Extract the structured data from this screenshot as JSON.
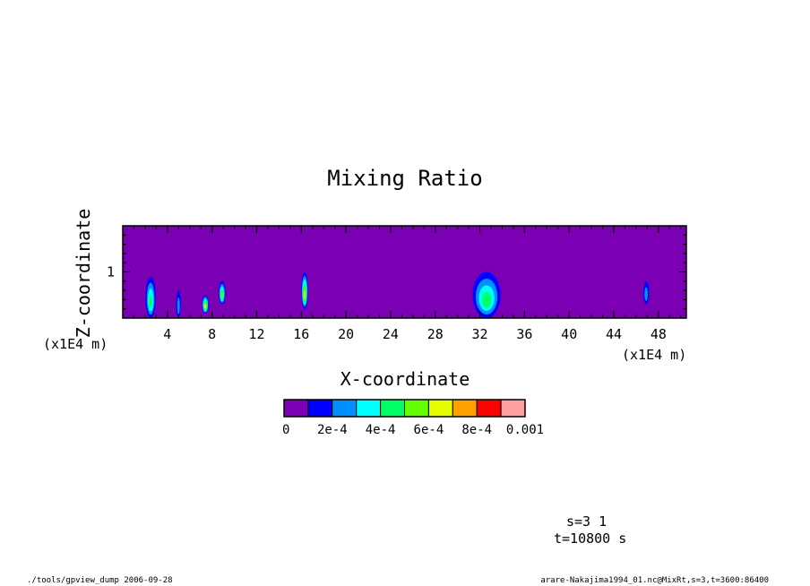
{
  "chart_data": {
    "type": "heatmap",
    "title": "Mixing Ratio",
    "xlabel": "X-coordinate",
    "ylabel": "Z-coordinate",
    "x_unit": "(x1E4 m)",
    "y_unit": "(x1E4 m)",
    "xlim": [
      0,
      50.5
    ],
    "ylim": [
      0,
      2
    ],
    "x_ticks": [
      4,
      8,
      12,
      16,
      20,
      24,
      28,
      32,
      36,
      40,
      44,
      48
    ],
    "y_ticks": [
      1
    ],
    "x_tick_labels": [
      "4",
      "8",
      "12",
      "16",
      "20",
      "24",
      "28",
      "32",
      "36",
      "40",
      "44",
      "48"
    ],
    "y_tick_labels": [
      "1"
    ],
    "colorbar": {
      "labels": [
        "0",
        "2e-4",
        "4e-4",
        "6e-4",
        "8e-4",
        "0.001"
      ],
      "level_values": [
        0,
        0.0002,
        0.0004,
        0.0006,
        0.0008,
        0.001
      ],
      "colors": [
        "#7b00b4",
        "#0000ff",
        "#0090ff",
        "#00ffff",
        "#00ff64",
        "#64ff00",
        "#e6ff00",
        "#ffa000",
        "#ff0000",
        "#ffa0a0"
      ]
    },
    "background_color": "#7b00b4",
    "features": [
      {
        "x": 2.5,
        "z_bottom": 0.0,
        "z_top": 0.9,
        "width": 0.9,
        "peak_level": 4
      },
      {
        "x": 5.0,
        "z_bottom": 0.0,
        "z_top": 0.6,
        "width": 0.4,
        "peak_level": 2
      },
      {
        "x": 7.4,
        "z_bottom": 0.1,
        "z_top": 0.5,
        "width": 0.6,
        "peak_level": 6
      },
      {
        "x": 8.9,
        "z_bottom": 0.3,
        "z_top": 0.8,
        "width": 0.6,
        "peak_level": 5
      },
      {
        "x": 16.3,
        "z_bottom": 0.2,
        "z_top": 1.0,
        "width": 0.6,
        "peak_level": 6
      },
      {
        "x": 32.6,
        "z_bottom": 0.0,
        "z_top": 1.0,
        "width": 2.5,
        "peak_level": 4
      },
      {
        "x": 46.9,
        "z_bottom": 0.3,
        "z_top": 0.8,
        "width": 0.5,
        "peak_level": 2
      }
    ]
  },
  "annotations": {
    "s_label": "s=3 1",
    "t_label": "t=10800 s",
    "footer_left": "./tools/gpview_dump 2006-09-28",
    "footer_right": "arare-Nakajima1994_01.nc@MixRt,s=3,t=3600:86400"
  }
}
